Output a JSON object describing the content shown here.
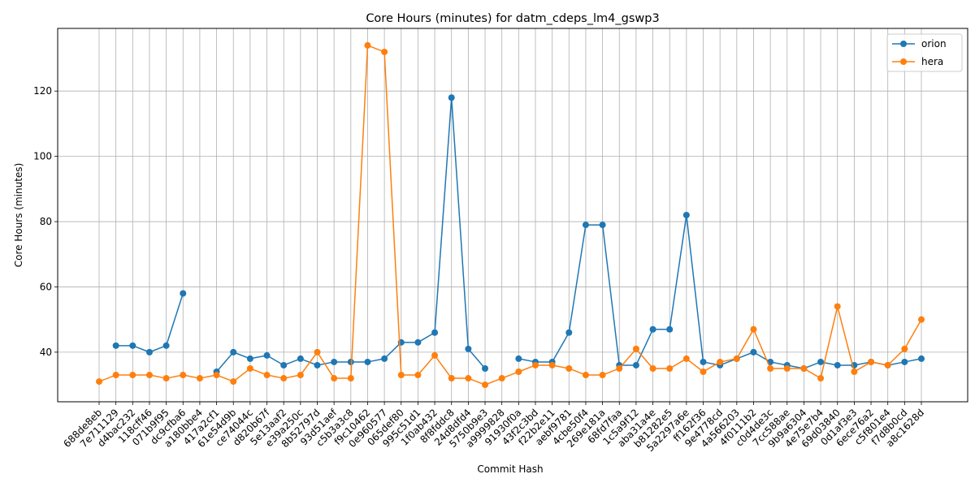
{
  "chart_data": {
    "type": "line",
    "title": "Core Hours (minutes) for datm_cdeps_lm4_gswp3",
    "xlabel": "Commit Hash",
    "ylabel": "Core Hours (minutes)",
    "ylim": [
      24.8,
      139.2
    ],
    "yticks": [
      40,
      60,
      80,
      100,
      120
    ],
    "grid": true,
    "legend_position": "top-right",
    "categories": [
      "688de8eb",
      "7e711129",
      "d4bac232",
      "118cff46",
      "071b9f95",
      "dc9cfba6",
      "a180bbe4",
      "417a2cf1",
      "61e54d9b",
      "ce74044c",
      "d820b67f",
      "5e13aaf2",
      "e39a250c",
      "8b52797d",
      "93d51aef",
      "c5b3a3c8",
      "f9c10462",
      "0e960577",
      "065def80",
      "995c51d1",
      "1f0ab432",
      "8f8fddc8",
      "24d8dfd4",
      "5750b9e3",
      "a9999828",
      "91930f0a",
      "43f2c3bd",
      "f22b2e11",
      "aebf9781",
      "4cbe50f4",
      "269e181a",
      "68fd7faa",
      "1c5a9f12",
      "aba31a4e",
      "b81282e5",
      "5a2297a6e",
      "ff162f36",
      "9e4778cd",
      "4a566203",
      "4f0111b2",
      "c0d4de3c",
      "7cc588ae",
      "9b9a6304",
      "4e75e7b4",
      "69d03840",
      "0d1af3e3",
      "6ece76a2",
      "c5f801e4",
      "f7d8b0cd",
      "a8c1628d"
    ],
    "series": [
      {
        "name": "orion",
        "color": "#1f77b4",
        "values": [
          null,
          42,
          42,
          40,
          42,
          58,
          null,
          34,
          40,
          38,
          39,
          36,
          38,
          36,
          37,
          37,
          37,
          38,
          43,
          43,
          46,
          118,
          41,
          35,
          null,
          38,
          37,
          37,
          46,
          79,
          79,
          36,
          36,
          47,
          47,
          82,
          37,
          36,
          38,
          40,
          37,
          36,
          35,
          37,
          36,
          36,
          37,
          36,
          37,
          38
        ]
      },
      {
        "name": "hera",
        "color": "#ff7f0e",
        "values": [
          31,
          33,
          33,
          33,
          32,
          33,
          32,
          33,
          31,
          35,
          33,
          32,
          33,
          40,
          32,
          32,
          134,
          132,
          33,
          33,
          39,
          32,
          32,
          30,
          32,
          34,
          36,
          36,
          35,
          33,
          33,
          35,
          41,
          35,
          35,
          38,
          34,
          37,
          38,
          47,
          35,
          35,
          35,
          32,
          54,
          34,
          37,
          36,
          41,
          50
        ]
      }
    ]
  }
}
